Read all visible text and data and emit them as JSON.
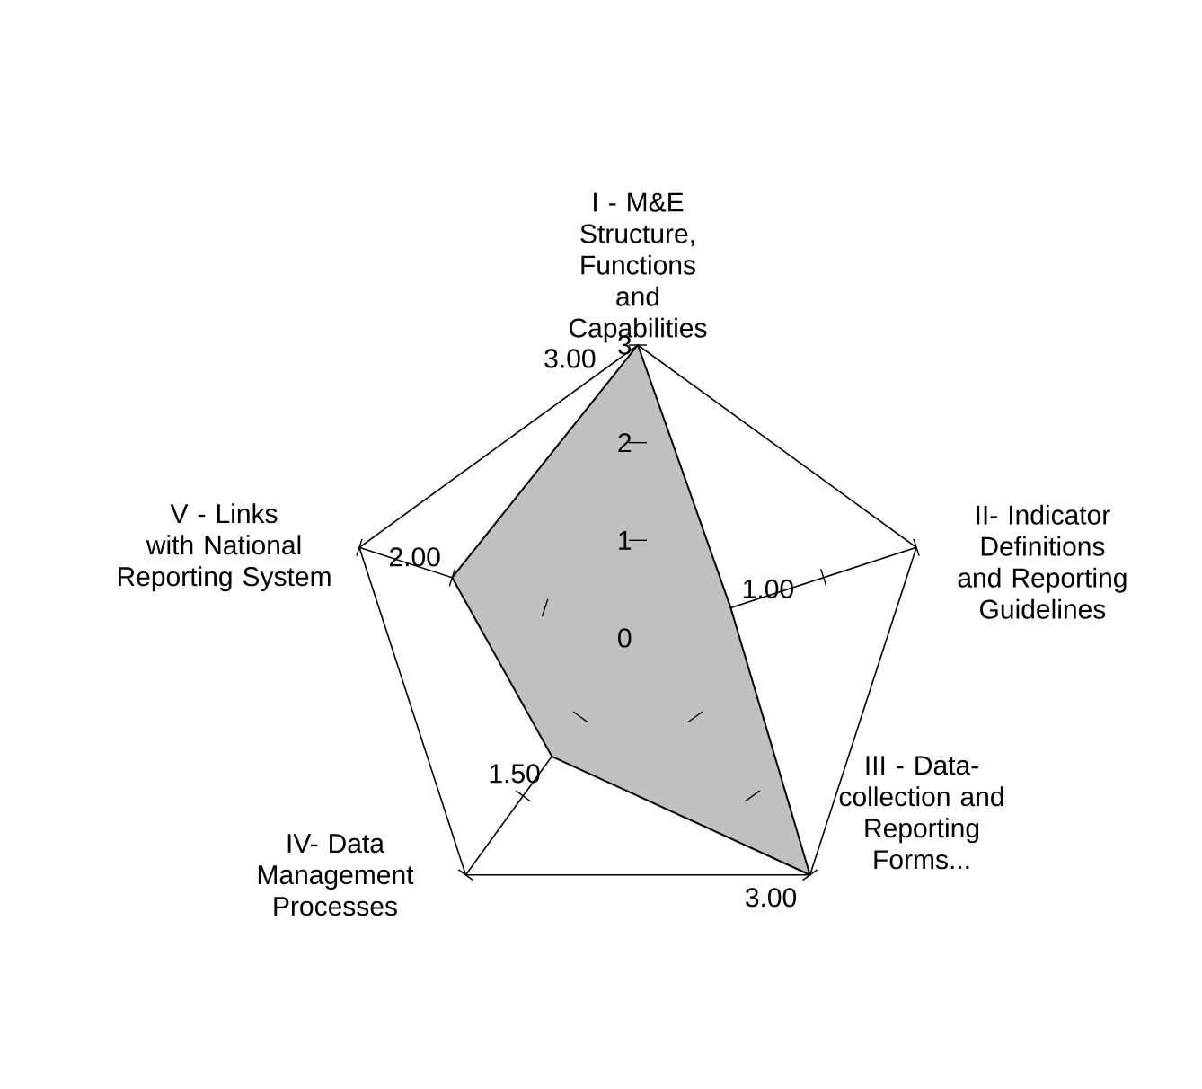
{
  "chart_data": {
    "type": "radar",
    "categories": [
      "I - M&E Structure, Functions and Capabilities",
      "II- Indicator Definitions and Reporting Guidelines",
      "III - Data-collection and Reporting Forms...",
      "IV- Data Management Processes",
      "V - Links with National Reporting System"
    ],
    "series": [
      {
        "color": "#c0c0c0",
        "values": [
          3,
          1,
          3,
          1.5,
          2
        ],
        "value_labels": [
          "3.00",
          "1.00",
          "3.00",
          "1.50",
          "2.00"
        ]
      }
    ],
    "ylim": [
      0,
      3
    ],
    "yticks": [
      0,
      1,
      2,
      3
    ]
  }
}
